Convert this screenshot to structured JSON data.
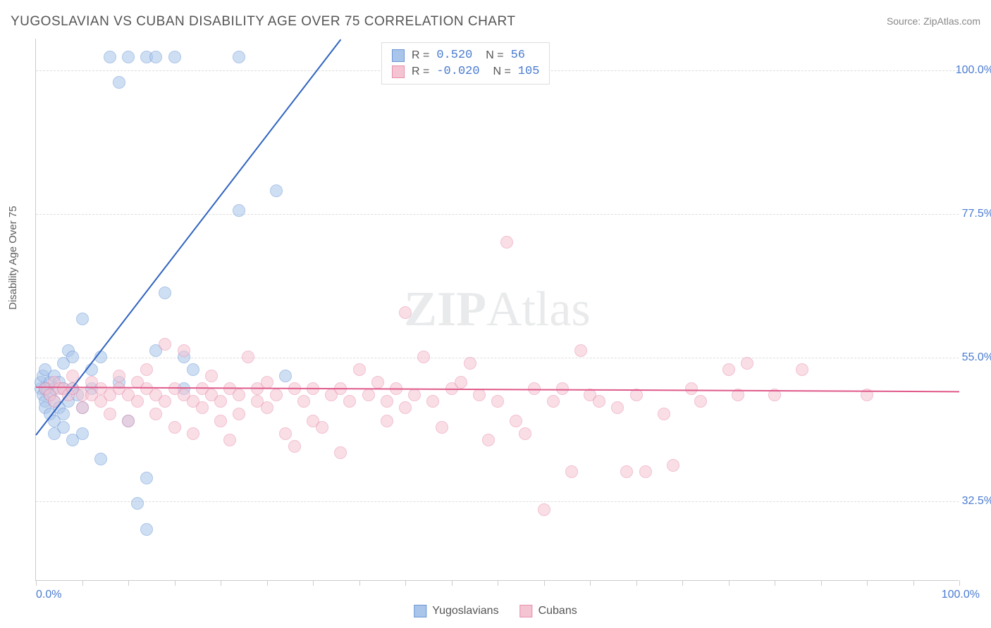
{
  "title": "YUGOSLAVIAN VS CUBAN DISABILITY AGE OVER 75 CORRELATION CHART",
  "source": "Source: ZipAtlas.com",
  "ylabel": "Disability Age Over 75",
  "watermark": "ZIPAtlas",
  "chart": {
    "type": "scatter",
    "xlim": [
      0,
      100
    ],
    "ylim": [
      20,
      105
    ],
    "x_tick_labels": {
      "left": "0.0%",
      "right": "100.0%"
    },
    "x_minor_ticks": [
      0,
      5,
      10,
      15,
      20,
      25,
      30,
      35,
      40,
      45,
      50,
      55,
      60,
      65,
      70,
      75,
      80,
      85,
      90,
      95,
      100
    ],
    "y_gridlines": [
      {
        "value": 32.5,
        "label": "32.5%"
      },
      {
        "value": 55.0,
        "label": "55.0%"
      },
      {
        "value": 77.5,
        "label": "77.5%"
      },
      {
        "value": 100.0,
        "label": "100.0%"
      }
    ],
    "grid_color": "#dddddd",
    "background_color": "#ffffff",
    "point_radius": 9,
    "point_opacity": 0.55,
    "series": [
      {
        "name": "Yugoslavians",
        "fill_color": "#a9c5ea",
        "stroke_color": "#6a96d6",
        "line_color": "#2f63c0",
        "R": "0.520",
        "N": "56",
        "trend": {
          "x1": 0,
          "y1": 43,
          "x2": 33,
          "y2": 105
        },
        "points": [
          [
            0.5,
            50
          ],
          [
            0.5,
            51
          ],
          [
            0.8,
            49
          ],
          [
            0.8,
            52
          ],
          [
            1,
            48
          ],
          [
            1,
            50
          ],
          [
            1,
            53
          ],
          [
            1,
            47
          ],
          [
            1.2,
            50
          ],
          [
            1.5,
            49
          ],
          [
            1.5,
            51
          ],
          [
            1.5,
            46
          ],
          [
            2,
            50
          ],
          [
            2,
            43
          ],
          [
            2,
            52
          ],
          [
            2,
            48
          ],
          [
            2,
            45
          ],
          [
            2.5,
            51
          ],
          [
            2.5,
            47
          ],
          [
            3,
            50
          ],
          [
            3,
            54
          ],
          [
            3,
            44
          ],
          [
            3,
            46
          ],
          [
            3.5,
            48
          ],
          [
            3.5,
            56
          ],
          [
            4,
            50
          ],
          [
            4,
            42
          ],
          [
            4,
            55
          ],
          [
            4.5,
            49
          ],
          [
            5,
            47
          ],
          [
            5,
            61
          ],
          [
            5,
            43
          ],
          [
            6,
            50
          ],
          [
            6,
            53
          ],
          [
            7,
            55
          ],
          [
            7,
            39
          ],
          [
            8,
            102
          ],
          [
            9,
            98
          ],
          [
            9,
            51
          ],
          [
            10,
            102
          ],
          [
            10,
            45
          ],
          [
            11,
            32
          ],
          [
            12,
            102
          ],
          [
            12,
            36
          ],
          [
            12,
            28
          ],
          [
            13,
            56
          ],
          [
            13,
            102
          ],
          [
            14,
            65
          ],
          [
            15,
            102
          ],
          [
            16,
            50
          ],
          [
            16,
            55
          ],
          [
            17,
            53
          ],
          [
            22,
            102
          ],
          [
            22,
            78
          ],
          [
            26,
            81
          ],
          [
            27,
            52
          ]
        ]
      },
      {
        "name": "Cubans",
        "fill_color": "#f5c4d3",
        "stroke_color": "#e88fab",
        "line_color": "#e05a8a",
        "R": "-0.020",
        "N": "105",
        "trend": {
          "x1": 0,
          "y1": 50.5,
          "x2": 100,
          "y2": 49.8
        },
        "points": [
          [
            1,
            50
          ],
          [
            1.5,
            49
          ],
          [
            2,
            51
          ],
          [
            2,
            48
          ],
          [
            2.5,
            50
          ],
          [
            3,
            50
          ],
          [
            3.5,
            49
          ],
          [
            4,
            50
          ],
          [
            4,
            52
          ],
          [
            5,
            49
          ],
          [
            5,
            47
          ],
          [
            6,
            51
          ],
          [
            6,
            49
          ],
          [
            7,
            48
          ],
          [
            7,
            50
          ],
          [
            8,
            49
          ],
          [
            8,
            46
          ],
          [
            9,
            50
          ],
          [
            9,
            52
          ],
          [
            10,
            49
          ],
          [
            10,
            45
          ],
          [
            11,
            51
          ],
          [
            11,
            48
          ],
          [
            12,
            50
          ],
          [
            12,
            53
          ],
          [
            13,
            49
          ],
          [
            13,
            46
          ],
          [
            14,
            48
          ],
          [
            14,
            57
          ],
          [
            15,
            50
          ],
          [
            15,
            44
          ],
          [
            16,
            56
          ],
          [
            16,
            49
          ],
          [
            17,
            48
          ],
          [
            17,
            43
          ],
          [
            18,
            50
          ],
          [
            18,
            47
          ],
          [
            19,
            49
          ],
          [
            19,
            52
          ],
          [
            20,
            48
          ],
          [
            20,
            45
          ],
          [
            21,
            50
          ],
          [
            21,
            42
          ],
          [
            22,
            49
          ],
          [
            22,
            46
          ],
          [
            23,
            55
          ],
          [
            24,
            48
          ],
          [
            24,
            50
          ],
          [
            25,
            47
          ],
          [
            25,
            51
          ],
          [
            26,
            49
          ],
          [
            27,
            43
          ],
          [
            28,
            50
          ],
          [
            28,
            41
          ],
          [
            29,
            48
          ],
          [
            30,
            50
          ],
          [
            30,
            45
          ],
          [
            31,
            44
          ],
          [
            32,
            49
          ],
          [
            33,
            50
          ],
          [
            33,
            40
          ],
          [
            34,
            48
          ],
          [
            35,
            53
          ],
          [
            36,
            49
          ],
          [
            37,
            51
          ],
          [
            38,
            48
          ],
          [
            38,
            45
          ],
          [
            39,
            50
          ],
          [
            40,
            47
          ],
          [
            40,
            62
          ],
          [
            41,
            49
          ],
          [
            42,
            55
          ],
          [
            43,
            48
          ],
          [
            44,
            44
          ],
          [
            45,
            50
          ],
          [
            46,
            51
          ],
          [
            47,
            54
          ],
          [
            48,
            49
          ],
          [
            49,
            42
          ],
          [
            50,
            48
          ],
          [
            51,
            73
          ],
          [
            52,
            45
          ],
          [
            53,
            43
          ],
          [
            54,
            50
          ],
          [
            55,
            31
          ],
          [
            56,
            48
          ],
          [
            57,
            50
          ],
          [
            58,
            37
          ],
          [
            59,
            56
          ],
          [
            60,
            49
          ],
          [
            61,
            48
          ],
          [
            63,
            47
          ],
          [
            64,
            37
          ],
          [
            65,
            49
          ],
          [
            66,
            37
          ],
          [
            68,
            46
          ],
          [
            69,
            38
          ],
          [
            71,
            50
          ],
          [
            72,
            48
          ],
          [
            75,
            53
          ],
          [
            76,
            49
          ],
          [
            77,
            54
          ],
          [
            80,
            49
          ],
          [
            83,
            53
          ],
          [
            90,
            49
          ]
        ]
      }
    ]
  },
  "legend_bottom": [
    {
      "label": "Yugoslavians",
      "fill": "#a9c5ea",
      "stroke": "#6a96d6"
    },
    {
      "label": "Cubans",
      "fill": "#f5c4d3",
      "stroke": "#e88fab"
    }
  ]
}
